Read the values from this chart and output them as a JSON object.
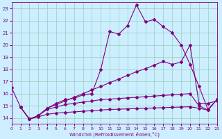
{
  "xlabel": "Windchill (Refroidissement éolien,°C)",
  "bg_color": "#cceeff",
  "line_color": "#800080",
  "grid_color": "#99ccbb",
  "xmin": 0,
  "xmax": 23,
  "ymin": 13.5,
  "ymax": 23.5,
  "yticks": [
    14,
    15,
    16,
    17,
    18,
    19,
    20,
    21,
    22,
    23
  ],
  "xticks": [
    0,
    1,
    2,
    3,
    4,
    5,
    6,
    7,
    8,
    9,
    10,
    11,
    12,
    13,
    14,
    15,
    16,
    17,
    18,
    19,
    20,
    21,
    22,
    23
  ],
  "line1_x": [
    0,
    1,
    2,
    3,
    4,
    5,
    6,
    7,
    8,
    9,
    10,
    11,
    12,
    13,
    14,
    15,
    16,
    17,
    18,
    19,
    20,
    21,
    22,
    23
  ],
  "line1_y": [
    16.5,
    14.9,
    13.9,
    14.2,
    14.8,
    15.2,
    15.5,
    15.6,
    15.9,
    16.0,
    18.0,
    21.1,
    20.9,
    21.6,
    23.3,
    21.9,
    22.1,
    21.5,
    21.0,
    20.0,
    18.4,
    16.6,
    14.7,
    15.5
  ],
  "line2_x": [
    1,
    2,
    3,
    4,
    5,
    6,
    7,
    8,
    9,
    10,
    11,
    12,
    13,
    14,
    15,
    16,
    17,
    18,
    19,
    20,
    21,
    22,
    23
  ],
  "line2_y": [
    14.9,
    13.9,
    14.2,
    14.8,
    15.1,
    15.4,
    15.7,
    16.0,
    16.3,
    16.6,
    16.9,
    17.2,
    17.5,
    17.8,
    18.05,
    18.35,
    18.65,
    18.4,
    18.6,
    20.0,
    15.2,
    15.2,
    15.4
  ],
  "line3_x": [
    1,
    2,
    3,
    4,
    5,
    6,
    7,
    8,
    9,
    10,
    11,
    12,
    13,
    14,
    15,
    16,
    17,
    18,
    19,
    20,
    21,
    22,
    23
  ],
  "line3_y": [
    14.9,
    13.9,
    14.2,
    14.7,
    14.9,
    15.1,
    15.2,
    15.3,
    15.4,
    15.5,
    15.55,
    15.6,
    15.65,
    15.7,
    15.75,
    15.8,
    15.85,
    15.9,
    15.95,
    16.0,
    15.0,
    14.65,
    15.5
  ],
  "line4_x": [
    1,
    2,
    3,
    4,
    5,
    6,
    7,
    8,
    9,
    10,
    11,
    12,
    13,
    14,
    15,
    16,
    17,
    18,
    19,
    20,
    21,
    22,
    23
  ],
  "line4_y": [
    14.9,
    13.9,
    14.1,
    14.3,
    14.4,
    14.45,
    14.5,
    14.55,
    14.6,
    14.65,
    14.7,
    14.72,
    14.75,
    14.77,
    14.8,
    14.82,
    14.85,
    14.87,
    14.9,
    14.92,
    14.8,
    14.65,
    15.5
  ]
}
